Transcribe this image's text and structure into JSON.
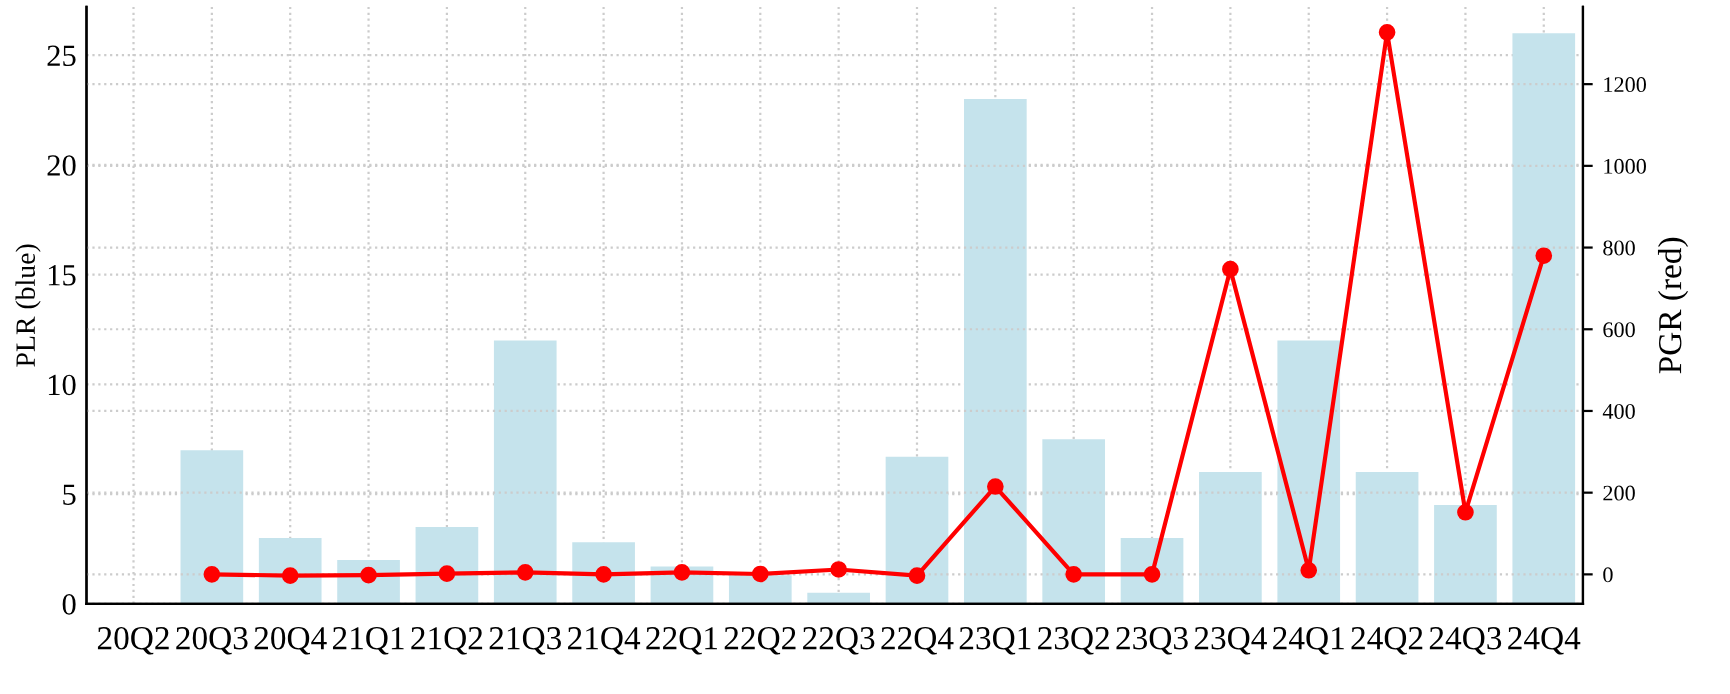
{
  "chart_data": {
    "type": "bar",
    "ylabel": "PLR (blue)",
    "y2label": "PGR (red)",
    "categories": [
      "20Q2",
      "20Q3",
      "20Q4",
      "21Q1",
      "21Q2",
      "21Q3",
      "21Q4",
      "22Q1",
      "22Q2",
      "22Q3",
      "22Q4",
      "23Q1",
      "23Q2",
      "23Q3",
      "23Q4",
      "24Q1",
      "24Q2",
      "24Q3",
      "24Q4"
    ],
    "series": [
      {
        "color": "#c5e3ec",
        "values": [
          null,
          7.0,
          3.0,
          2.0,
          3.5,
          12.0,
          2.8,
          1.7,
          1.3,
          0.5,
          6.7,
          23.0,
          7.5,
          3.0,
          6.0,
          12.0,
          6.0,
          4.5,
          26.0
        ]
      },
      {
        "type": "line",
        "axis": "y2",
        "color": "#ff0000",
        "marker": "circle",
        "line_style": "solid",
        "values": [
          null,
          0,
          -3,
          -2,
          2,
          5,
          0,
          5,
          1,
          12,
          -3,
          215,
          0,
          0,
          747,
          10,
          1327,
          152,
          780
        ]
      }
    ],
    "ylim": [
      0,
      27.2
    ],
    "yticks": [
      0,
      5,
      10,
      15,
      20,
      25
    ],
    "y2lim": [
      -72,
      1389
    ],
    "y2ticks": [
      0,
      200,
      400,
      600,
      800,
      1000,
      1200
    ],
    "grid": true
  }
}
